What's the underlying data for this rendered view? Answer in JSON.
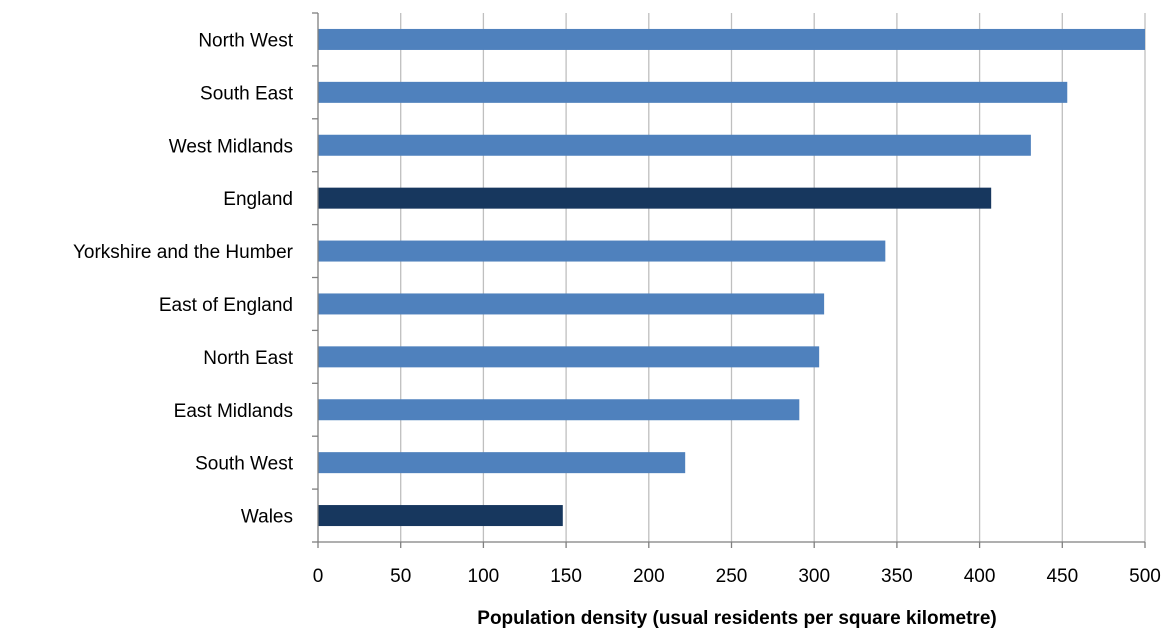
{
  "chart_data": {
    "type": "bar",
    "orientation": "horizontal",
    "categories": [
      "North West",
      "South East",
      "West Midlands",
      "England",
      "Yorkshire and the Humber",
      "East of England",
      "North East",
      "East Midlands",
      "South West",
      "Wales"
    ],
    "values": [
      500,
      453,
      431,
      407,
      343,
      306,
      303,
      291,
      222,
      148
    ],
    "bar_colors": [
      "#4f81bd",
      "#4f81bd",
      "#4f81bd",
      "#17375e",
      "#4f81bd",
      "#4f81bd",
      "#4f81bd",
      "#4f81bd",
      "#4f81bd",
      "#17375e"
    ],
    "title": "",
    "xlabel": "Population density (usual residents per square kilometre)",
    "ylabel": "",
    "xlim": [
      0,
      500
    ],
    "xticks": [
      0,
      50,
      100,
      150,
      200,
      250,
      300,
      350,
      400,
      450,
      500
    ],
    "grid": "vertical"
  },
  "colors": {
    "region_bar": "#4f81bd",
    "country_bar": "#17375e",
    "gridline": "#bfbfbf",
    "axis": "#7f7f7f"
  }
}
